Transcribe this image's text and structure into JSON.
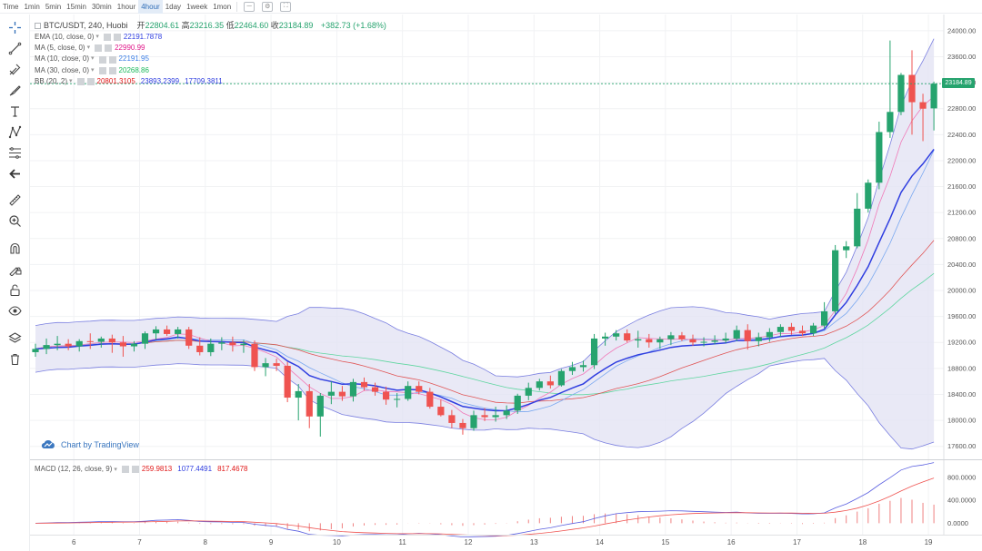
{
  "toolbar": {
    "intervals": [
      "Time",
      "1min",
      "5min",
      "15min",
      "30min",
      "1hour",
      "4hour",
      "1day",
      "1week",
      "1mon"
    ],
    "active_interval": "4hour"
  },
  "legend": {
    "symbol": "BTC/USDT, 240, Huobi",
    "open_label": "开",
    "open": "22804.61",
    "high_label": "高",
    "high": "23216.35",
    "low_label": "低",
    "low": "22464.60",
    "close_label": "收",
    "close": "23184.89",
    "change": "+382.73 (+1.68%)",
    "indicators": [
      {
        "label": "EMA (10, close, 0)",
        "values": [
          "22191.7878"
        ],
        "colors": [
          "#2f3ee0"
        ]
      },
      {
        "label": "MA (5, close, 0)",
        "values": [
          "22990.99"
        ],
        "colors": [
          "#e0198a"
        ]
      },
      {
        "label": "MA (10, close, 0)",
        "values": [
          "22191.95"
        ],
        "colors": [
          "#3b7ee6"
        ]
      },
      {
        "label": "MA (30, close, 0)",
        "values": [
          "20268.86"
        ],
        "colors": [
          "#19b85a"
        ]
      },
      {
        "label": "BB (20, 2)",
        "values": [
          "20801.3105",
          "23893.2399",
          "17709.3811"
        ],
        "colors": [
          "#e01919",
          "#2f3ee0",
          "#2f3ee0"
        ]
      }
    ]
  },
  "watermark": "Chart by TradingView",
  "last_price_badge": "23184.89",
  "macd": {
    "label": "MACD (12, 26, close, 9)",
    "values": [
      "259.9813",
      "1077.4491",
      "817.4678"
    ],
    "colors": [
      "#e01919",
      "#2f3ee0",
      "#e01919"
    ],
    "axis_ticks": [
      "800.0000",
      "400.0000",
      "0.0000"
    ]
  },
  "colors": {
    "up": "#26a36e",
    "down": "#ef5350",
    "bb_fill": "#e4e4f4",
    "accent": "#2f6db7"
  },
  "chart_data": {
    "type": "candlestick",
    "y_ticks": [
      "24000.00",
      "23600.00",
      "23200.00",
      "22800.00",
      "22400.00",
      "22000.00",
      "21600.00",
      "21200.00",
      "20800.00",
      "20400.00",
      "20000.00",
      "19600.00",
      "19200.00",
      "18800.00",
      "18400.00",
      "18000.00",
      "17600.00"
    ],
    "ylim": [
      17400,
      24250
    ],
    "x_ticks": [
      "6",
      "7",
      "8",
      "9",
      "10",
      "11",
      "12",
      "13",
      "14",
      "15",
      "16",
      "17",
      "18",
      "19"
    ],
    "x_tick_index": [
      3.5,
      9.5,
      15.5,
      21.5,
      27.5,
      33.5,
      39.5,
      45.5,
      51.5,
      57.5,
      63.5,
      69.5,
      75.5,
      81.5
    ],
    "candles": [
      {
        "o": 19050,
        "h": 19180,
        "l": 18980,
        "c": 19100
      },
      {
        "o": 19100,
        "h": 19260,
        "l": 19020,
        "c": 19160
      },
      {
        "o": 19160,
        "h": 19300,
        "l": 19080,
        "c": 19180
      },
      {
        "o": 19180,
        "h": 19250,
        "l": 19080,
        "c": 19140
      },
      {
        "o": 19140,
        "h": 19250,
        "l": 19060,
        "c": 19220
      },
      {
        "o": 19220,
        "h": 19340,
        "l": 19100,
        "c": 19210
      },
      {
        "o": 19210,
        "h": 19290,
        "l": 19120,
        "c": 19260
      },
      {
        "o": 19260,
        "h": 19320,
        "l": 19040,
        "c": 19200
      },
      {
        "o": 19200,
        "h": 19300,
        "l": 18980,
        "c": 19140
      },
      {
        "o": 19140,
        "h": 19220,
        "l": 19060,
        "c": 19180
      },
      {
        "o": 19180,
        "h": 19370,
        "l": 19100,
        "c": 19340
      },
      {
        "o": 19340,
        "h": 19450,
        "l": 19240,
        "c": 19400
      },
      {
        "o": 19400,
        "h": 19460,
        "l": 19300,
        "c": 19330
      },
      {
        "o": 19330,
        "h": 19440,
        "l": 19260,
        "c": 19400
      },
      {
        "o": 19400,
        "h": 19440,
        "l": 19100,
        "c": 19150
      },
      {
        "o": 19150,
        "h": 19280,
        "l": 19000,
        "c": 19050
      },
      {
        "o": 19050,
        "h": 19260,
        "l": 18990,
        "c": 19180
      },
      {
        "o": 19180,
        "h": 19280,
        "l": 19080,
        "c": 19200
      },
      {
        "o": 19200,
        "h": 19290,
        "l": 19060,
        "c": 19160
      },
      {
        "o": 19160,
        "h": 19240,
        "l": 19040,
        "c": 19180
      },
      {
        "o": 19180,
        "h": 19230,
        "l": 18760,
        "c": 18820
      },
      {
        "o": 18820,
        "h": 18960,
        "l": 18680,
        "c": 18880
      },
      {
        "o": 18880,
        "h": 18950,
        "l": 18760,
        "c": 18840
      },
      {
        "o": 18840,
        "h": 18900,
        "l": 18280,
        "c": 18350
      },
      {
        "o": 18350,
        "h": 18560,
        "l": 18000,
        "c": 18450
      },
      {
        "o": 18450,
        "h": 18560,
        "l": 17880,
        "c": 18060
      },
      {
        "o": 18060,
        "h": 18420,
        "l": 17750,
        "c": 18380
      },
      {
        "o": 18380,
        "h": 18600,
        "l": 18250,
        "c": 18440
      },
      {
        "o": 18440,
        "h": 18530,
        "l": 18300,
        "c": 18370
      },
      {
        "o": 18370,
        "h": 18640,
        "l": 18290,
        "c": 18590
      },
      {
        "o": 18590,
        "h": 18660,
        "l": 18460,
        "c": 18510
      },
      {
        "o": 18510,
        "h": 18580,
        "l": 18380,
        "c": 18440
      },
      {
        "o": 18440,
        "h": 18520,
        "l": 18240,
        "c": 18320
      },
      {
        "o": 18320,
        "h": 18420,
        "l": 18200,
        "c": 18330
      },
      {
        "o": 18330,
        "h": 18600,
        "l": 18300,
        "c": 18530
      },
      {
        "o": 18530,
        "h": 18600,
        "l": 18400,
        "c": 18440
      },
      {
        "o": 18440,
        "h": 18500,
        "l": 18180,
        "c": 18210
      },
      {
        "o": 18210,
        "h": 18320,
        "l": 18060,
        "c": 18080
      },
      {
        "o": 18080,
        "h": 18160,
        "l": 17880,
        "c": 17960
      },
      {
        "o": 17960,
        "h": 18020,
        "l": 17780,
        "c": 17880
      },
      {
        "o": 17880,
        "h": 18150,
        "l": 17840,
        "c": 18080
      },
      {
        "o": 18080,
        "h": 18190,
        "l": 17990,
        "c": 18050
      },
      {
        "o": 18050,
        "h": 18210,
        "l": 17980,
        "c": 18080
      },
      {
        "o": 18080,
        "h": 18230,
        "l": 18020,
        "c": 18150
      },
      {
        "o": 18150,
        "h": 18410,
        "l": 18100,
        "c": 18380
      },
      {
        "o": 18380,
        "h": 18580,
        "l": 18310,
        "c": 18500
      },
      {
        "o": 18500,
        "h": 18640,
        "l": 18460,
        "c": 18600
      },
      {
        "o": 18600,
        "h": 18690,
        "l": 18490,
        "c": 18540
      },
      {
        "o": 18540,
        "h": 18790,
        "l": 18520,
        "c": 18760
      },
      {
        "o": 18760,
        "h": 18900,
        "l": 18700,
        "c": 18820
      },
      {
        "o": 18820,
        "h": 18920,
        "l": 18750,
        "c": 18850
      },
      {
        "o": 18850,
        "h": 19330,
        "l": 18790,
        "c": 19260
      },
      {
        "o": 19260,
        "h": 19350,
        "l": 19150,
        "c": 19290
      },
      {
        "o": 19290,
        "h": 19390,
        "l": 19230,
        "c": 19340
      },
      {
        "o": 19340,
        "h": 19400,
        "l": 19200,
        "c": 19230
      },
      {
        "o": 19230,
        "h": 19380,
        "l": 19120,
        "c": 19250
      },
      {
        "o": 19250,
        "h": 19330,
        "l": 19120,
        "c": 19200
      },
      {
        "o": 19200,
        "h": 19290,
        "l": 19100,
        "c": 19250
      },
      {
        "o": 19250,
        "h": 19360,
        "l": 19160,
        "c": 19310
      },
      {
        "o": 19310,
        "h": 19360,
        "l": 19220,
        "c": 19250
      },
      {
        "o": 19250,
        "h": 19320,
        "l": 19150,
        "c": 19200
      },
      {
        "o": 19200,
        "h": 19280,
        "l": 19140,
        "c": 19210
      },
      {
        "o": 19210,
        "h": 19310,
        "l": 19170,
        "c": 19230
      },
      {
        "o": 19230,
        "h": 19350,
        "l": 19190,
        "c": 19260
      },
      {
        "o": 19260,
        "h": 19460,
        "l": 19220,
        "c": 19390
      },
      {
        "o": 19390,
        "h": 19480,
        "l": 19090,
        "c": 19220
      },
      {
        "o": 19220,
        "h": 19350,
        "l": 19140,
        "c": 19280
      },
      {
        "o": 19280,
        "h": 19420,
        "l": 19210,
        "c": 19360
      },
      {
        "o": 19360,
        "h": 19480,
        "l": 19290,
        "c": 19440
      },
      {
        "o": 19440,
        "h": 19500,
        "l": 19320,
        "c": 19380
      },
      {
        "o": 19380,
        "h": 19460,
        "l": 19300,
        "c": 19340
      },
      {
        "o": 19340,
        "h": 19500,
        "l": 19300,
        "c": 19460
      },
      {
        "o": 19460,
        "h": 19820,
        "l": 19420,
        "c": 19680
      },
      {
        "o": 19680,
        "h": 20700,
        "l": 19640,
        "c": 20620
      },
      {
        "o": 20620,
        "h": 20760,
        "l": 20500,
        "c": 20680
      },
      {
        "o": 20680,
        "h": 21500,
        "l": 20650,
        "c": 21260
      },
      {
        "o": 21260,
        "h": 21710,
        "l": 21200,
        "c": 21660
      },
      {
        "o": 21660,
        "h": 22600,
        "l": 21560,
        "c": 22440
      },
      {
        "o": 22440,
        "h": 23850,
        "l": 22350,
        "c": 22750
      },
      {
        "o": 22750,
        "h": 23350,
        "l": 22700,
        "c": 23320
      },
      {
        "o": 23320,
        "h": 23700,
        "l": 22400,
        "c": 22900
      },
      {
        "o": 22900,
        "h": 23030,
        "l": 22300,
        "c": 22800
      },
      {
        "o": 22804.61,
        "h": 23216.35,
        "l": 22464.6,
        "c": 23184.89
      }
    ],
    "macd_ylim": [
      -200,
      1100
    ]
  }
}
